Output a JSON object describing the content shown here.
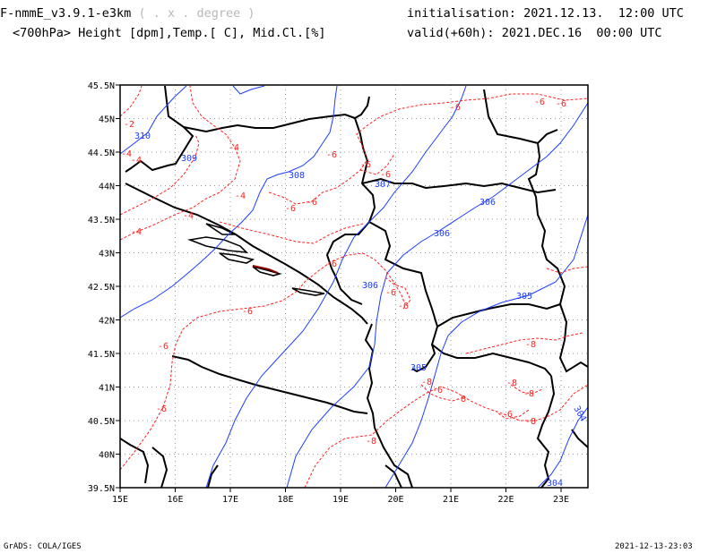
{
  "header": {
    "model": "F-nmmE_v3.9.1-e3km",
    "units_hint": "( . x . degree )",
    "fields": "<700hPa> Height [dpm],Temp.[ C], Mid.Cl.[%]",
    "init_label": "initialisation:",
    "init_value": "2021.12.13.  12:00 UTC",
    "valid_label": "valid(+60h):",
    "valid_value": "2021.DEC.16  00:00 UTC"
  },
  "axes": {
    "lon_ticks": [
      "15E",
      "16E",
      "17E",
      "18E",
      "19E",
      "20E",
      "21E",
      "22E",
      "23E"
    ],
    "lat_ticks": [
      "39.5N",
      "40N",
      "40.5N",
      "41N",
      "41.5N",
      "42N",
      "42.5N",
      "43N",
      "43.5N",
      "44N",
      "44.5N",
      "45N",
      "45.5N"
    ]
  },
  "contours": {
    "height_color": "#1e3cff",
    "temp_color": "#ff2020",
    "height_labels": [
      "310",
      "309",
      "308",
      "307",
      "306",
      "306",
      "306",
      "305",
      "305",
      "304",
      "304"
    ],
    "temp_labels": [
      "-2",
      "-4",
      "-4",
      "-4",
      "-4",
      "-4",
      "-4",
      "-6",
      "-6",
      "-6",
      "-6",
      "-6",
      "-6",
      "-6",
      "-6",
      "-6",
      "-6",
      "-6",
      "-6",
      "-6",
      "-6",
      "-6",
      "-6",
      "-8",
      "-8",
      "-8",
      "-8",
      "-8",
      "-8",
      "-8"
    ]
  },
  "footer": {
    "left": "GrADS: COLA/IGES",
    "right": "2021-12-13-23:03"
  }
}
